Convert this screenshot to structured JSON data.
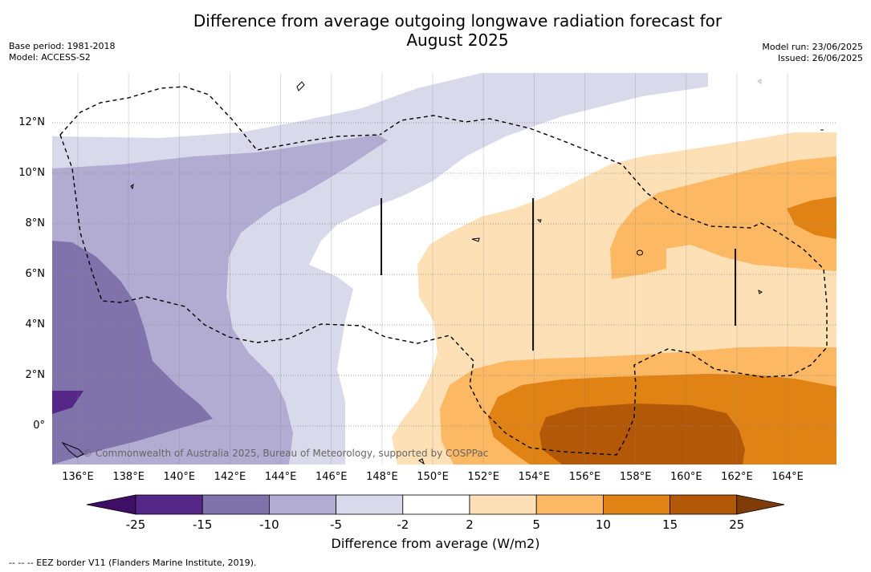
{
  "header": {
    "title_line1": "Difference from average outgoing longwave radiation forecast for",
    "title_line2": "August 2025",
    "base_period": "Base period: 1981-2018",
    "model": "Model: ACCESS-S2",
    "model_run": "Model run: 23/06/2025",
    "issued": "Issued: 26/06/2025"
  },
  "map": {
    "lon_labels": [
      "136°E",
      "138°E",
      "140°E",
      "142°E",
      "144°E",
      "146°E",
      "148°E",
      "150°E",
      "152°E",
      "154°E",
      "156°E",
      "158°E",
      "160°E",
      "162°E",
      "164°E"
    ],
    "lat_labels": [
      "12°N",
      "10°N",
      "8°N",
      "6°N",
      "4°N",
      "2°N",
      "0°"
    ],
    "credit": "© Commonwealth of Australia 2025, Bureau of Meteorology, supported by COSPPac"
  },
  "colorbar": {
    "label": "Difference from average (W/m2)",
    "ticks": [
      "-25",
      "-15",
      "-10",
      "-5",
      "-2",
      "2",
      "5",
      "10",
      "15",
      "25"
    ],
    "colors": [
      "#3f0f68",
      "#542788",
      "#8073ac",
      "#b2abd2",
      "#d8daeb",
      "#ffffff",
      "#fee0b6",
      "#fdb863",
      "#e08214",
      "#b35806",
      "#7f3b08"
    ]
  },
  "footnote": "--  --  -- EEZ border V11 (Flanders Marine Institute, 2019)."
}
